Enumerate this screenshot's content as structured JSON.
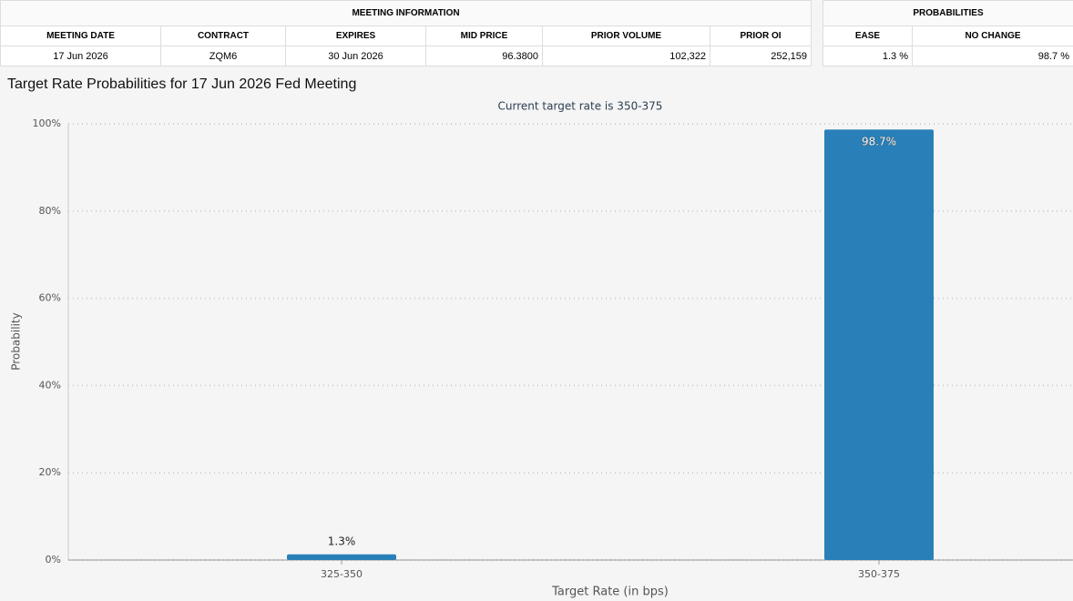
{
  "meeting_info": {
    "title": "MEETING INFORMATION",
    "headers": [
      "MEETING DATE",
      "CONTRACT",
      "EXPIRES",
      "MID PRICE",
      "PRIOR VOLUME",
      "PRIOR OI"
    ],
    "row": [
      "17 Jun 2026",
      "ZQM6",
      "30 Jun 2026",
      "96.3800",
      "102,322",
      "252,159"
    ]
  },
  "probabilities": {
    "title": "PROBABILITIES",
    "headers": [
      "EASE",
      "NO CHANGE"
    ],
    "row": [
      "1.3 %",
      "98.7 %"
    ]
  },
  "chart_data": {
    "type": "bar",
    "title": "Target Rate Probabilities for 17 Jun 2026 Fed Meeting",
    "subtitle": "Current target rate is 350-375",
    "x_label": "Target Rate (in bps)",
    "y_label": "Probability",
    "categories": [
      "325-350",
      "350-375"
    ],
    "values": [
      1.3,
      98.7
    ],
    "value_labels": [
      "1.3%",
      "98.7%"
    ],
    "color": "#2980b9",
    "ylim": [
      0,
      100
    ],
    "yticks": [
      {
        "value": 0,
        "label": "0%"
      },
      {
        "value": 20,
        "label": "20%"
      },
      {
        "value": 40,
        "label": "40%"
      },
      {
        "value": 60,
        "label": "60%"
      },
      {
        "value": 80,
        "label": "80%"
      },
      {
        "value": 100,
        "label": "100%"
      }
    ],
    "grid": true
  }
}
